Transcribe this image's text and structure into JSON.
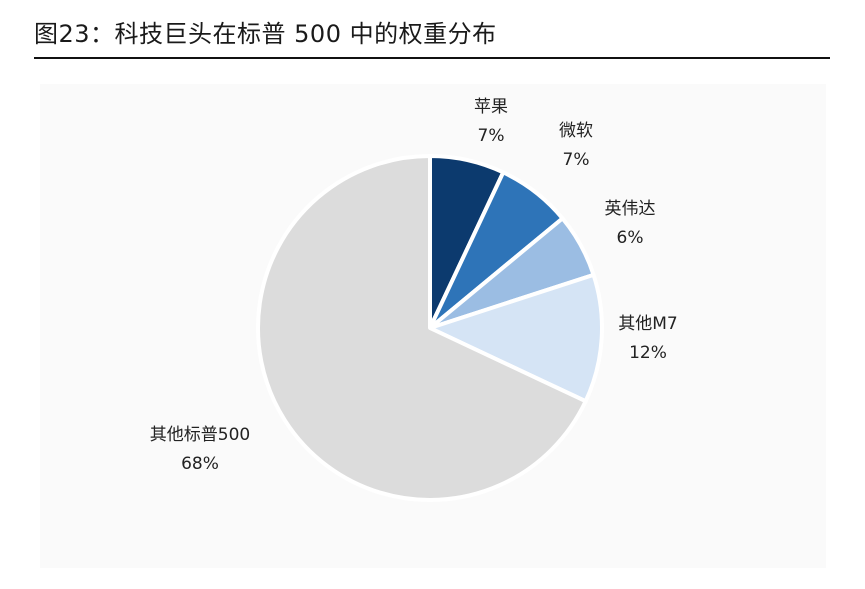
{
  "figure": {
    "title": "图23：科技巨头在标普 500 中的权重分布"
  },
  "chart_data": {
    "type": "pie",
    "title": "",
    "start_angle_deg": 0,
    "direction": "clockwise",
    "slices": [
      {
        "label": "苹果",
        "value": 7,
        "value_label": "7%",
        "color": "#0c3a6e"
      },
      {
        "label": "微软",
        "value": 7,
        "value_label": "7%",
        "color": "#2e74b8"
      },
      {
        "label": "英伟达",
        "value": 6,
        "value_label": "6%",
        "color": "#9bbde3"
      },
      {
        "label": "其他M7",
        "value": 12,
        "value_label": "12%",
        "color": "#d5e4f5"
      },
      {
        "label": "其他标普500",
        "value": 68,
        "value_label": "68%",
        "color": "#dcdcdc"
      }
    ]
  }
}
